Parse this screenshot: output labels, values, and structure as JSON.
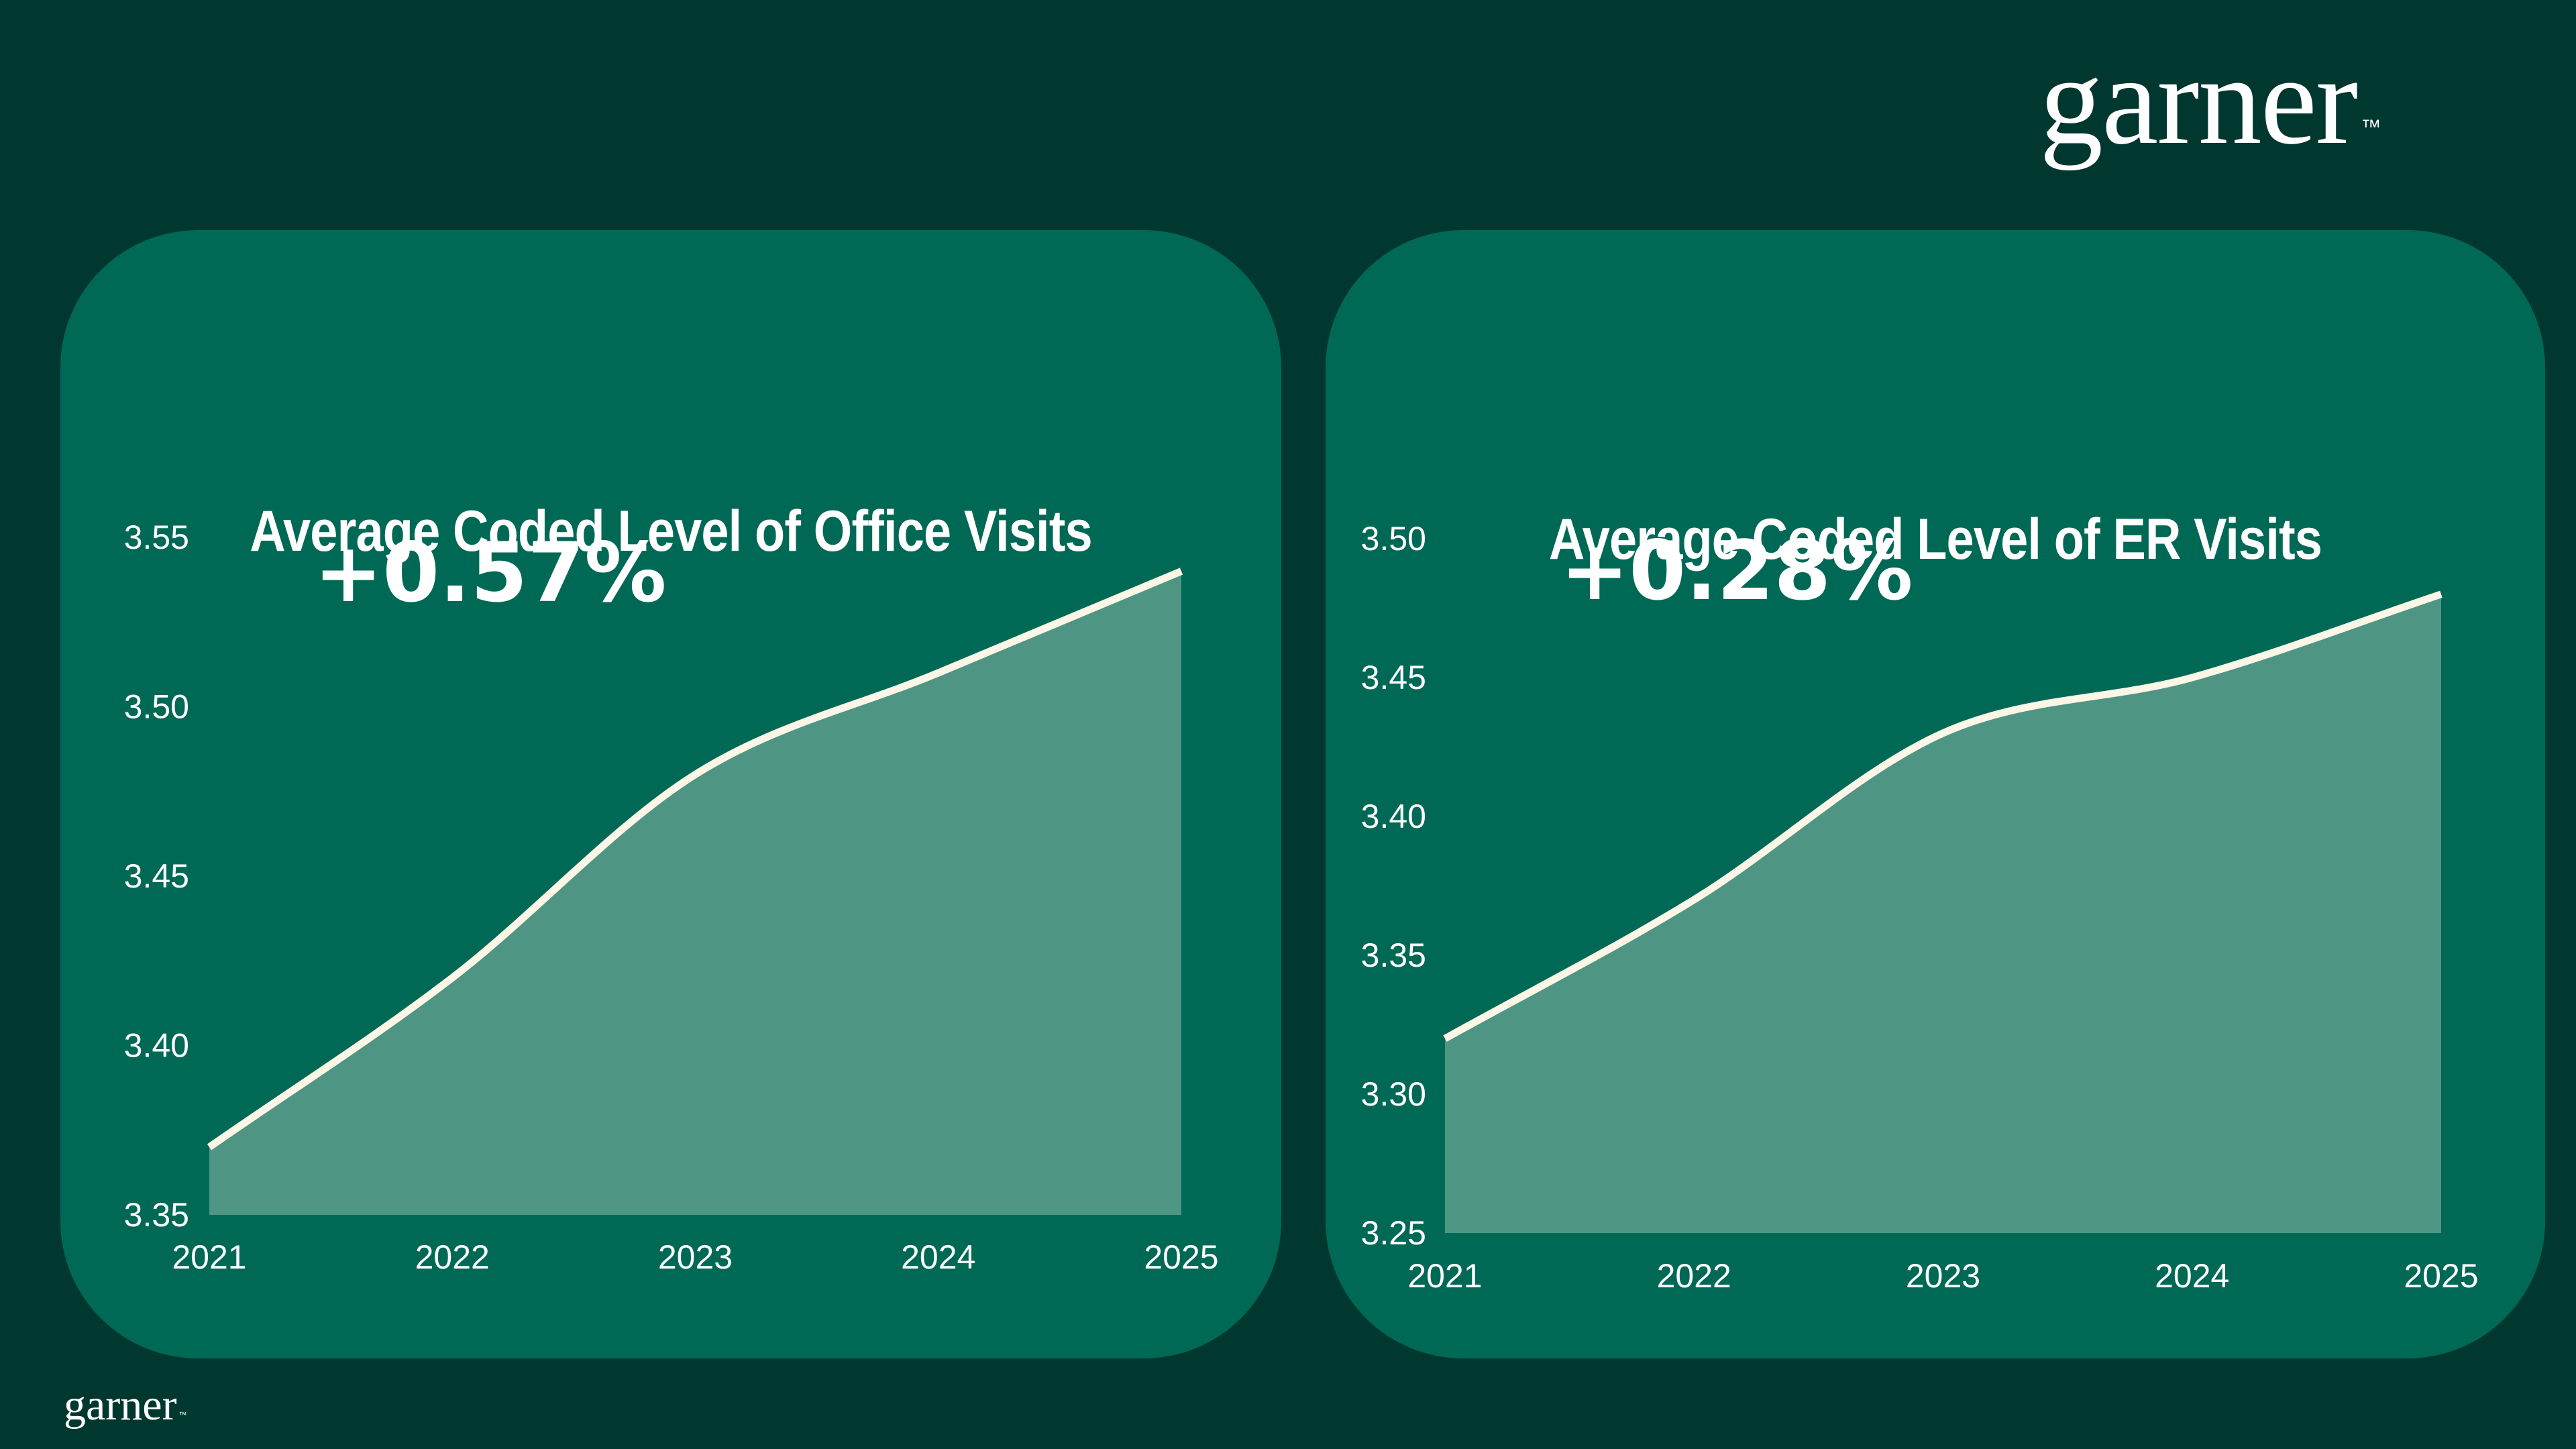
{
  "brand": {
    "name": "garner",
    "tm": "™"
  },
  "chart_data": [
    {
      "type": "area",
      "title": "Average Coded Level of Office Visits",
      "x": [
        "2021",
        "2022",
        "2023",
        "2024",
        "2025"
      ],
      "values": [
        3.37,
        3.42,
        3.48,
        3.51,
        3.54
      ],
      "yticks": [
        "3.35",
        "3.40",
        "3.45",
        "3.50",
        "3.55"
      ],
      "ylim": [
        3.35,
        3.55
      ],
      "annotation": "+0.57%",
      "grid": false,
      "colors": {
        "line": "#fbf6e6",
        "fill": "#4f9583"
      }
    },
    {
      "type": "area",
      "title": "Average Coded Level of ER Visits",
      "x": [
        "2021",
        "2022",
        "2023",
        "2024",
        "2025"
      ],
      "values": [
        3.32,
        3.37,
        3.43,
        3.45,
        3.48
      ],
      "yticks": [
        "3.25",
        "3.30",
        "3.35",
        "3.40",
        "3.45",
        "3.50"
      ],
      "ylim": [
        3.25,
        3.5
      ],
      "annotation": "+0.28%",
      "grid": false,
      "colors": {
        "line": "#fbf6e6",
        "fill": "#4f9583"
      }
    }
  ]
}
